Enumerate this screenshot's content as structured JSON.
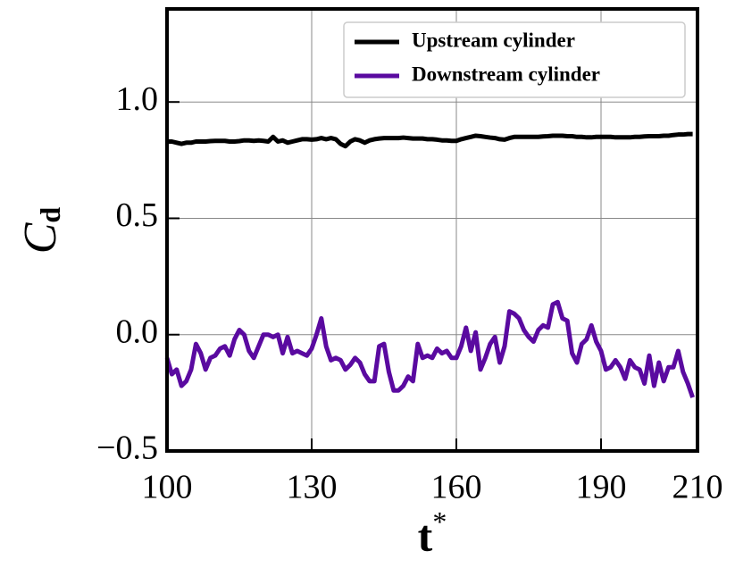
{
  "chart_data": {
    "type": "line",
    "x_label": {
      "main": "t",
      "sup": "*"
    },
    "y_label": {
      "main": "C",
      "sub": "d"
    },
    "x": [
      100,
      101,
      102,
      103,
      104,
      105,
      106,
      107,
      108,
      109,
      110,
      111,
      112,
      113,
      114,
      115,
      116,
      117,
      118,
      119,
      120,
      121,
      122,
      123,
      124,
      125,
      126,
      127,
      128,
      129,
      130,
      131,
      132,
      133,
      134,
      135,
      136,
      137,
      138,
      139,
      140,
      141,
      142,
      143,
      144,
      145,
      146,
      147,
      148,
      149,
      150,
      151,
      152,
      153,
      154,
      155,
      156,
      157,
      158,
      159,
      160,
      161,
      162,
      163,
      164,
      165,
      166,
      167,
      168,
      169,
      170,
      171,
      172,
      173,
      174,
      175,
      176,
      177,
      178,
      179,
      180,
      181,
      182,
      183,
      184,
      185,
      186,
      187,
      188,
      189,
      190,
      191,
      192,
      193,
      194,
      195,
      196,
      197,
      198,
      199,
      200,
      201,
      202,
      203,
      204,
      205,
      206,
      207,
      208,
      209
    ],
    "series": [
      {
        "name": "Upstream cylinder",
        "color": "#000000",
        "values": [
          0.83,
          0.83,
          0.825,
          0.82,
          0.825,
          0.825,
          0.83,
          0.83,
          0.83,
          0.832,
          0.833,
          0.833,
          0.833,
          0.83,
          0.83,
          0.832,
          0.835,
          0.835,
          0.833,
          0.835,
          0.833,
          0.83,
          0.85,
          0.83,
          0.835,
          0.825,
          0.83,
          0.835,
          0.84,
          0.84,
          0.838,
          0.84,
          0.845,
          0.84,
          0.845,
          0.84,
          0.82,
          0.81,
          0.83,
          0.84,
          0.835,
          0.825,
          0.835,
          0.84,
          0.843,
          0.845,
          0.845,
          0.845,
          0.845,
          0.847,
          0.845,
          0.843,
          0.843,
          0.843,
          0.84,
          0.84,
          0.838,
          0.835,
          0.835,
          0.833,
          0.833,
          0.84,
          0.845,
          0.85,
          0.855,
          0.853,
          0.85,
          0.847,
          0.845,
          0.84,
          0.838,
          0.845,
          0.85,
          0.85,
          0.85,
          0.85,
          0.85,
          0.85,
          0.852,
          0.853,
          0.855,
          0.855,
          0.855,
          0.853,
          0.853,
          0.85,
          0.85,
          0.848,
          0.848,
          0.85,
          0.85,
          0.85,
          0.85,
          0.848,
          0.848,
          0.848,
          0.848,
          0.85,
          0.85,
          0.852,
          0.853,
          0.853,
          0.853,
          0.855,
          0.855,
          0.858,
          0.86,
          0.86,
          0.862,
          0.862
        ]
      },
      {
        "name": "Downstream cylinder",
        "color": "#5a0aa0",
        "values": [
          -0.1,
          -0.17,
          -0.15,
          -0.22,
          -0.2,
          -0.15,
          -0.04,
          -0.08,
          -0.15,
          -0.1,
          -0.09,
          -0.06,
          -0.05,
          -0.09,
          -0.02,
          0.02,
          0.0,
          -0.07,
          -0.1,
          -0.05,
          0.0,
          0.0,
          -0.01,
          0.0,
          -0.08,
          -0.01,
          -0.08,
          -0.07,
          -0.08,
          -0.09,
          -0.06,
          0.0,
          0.07,
          -0.05,
          -0.11,
          -0.1,
          -0.11,
          -0.15,
          -0.13,
          -0.1,
          -0.12,
          -0.17,
          -0.2,
          -0.2,
          -0.05,
          -0.04,
          -0.16,
          -0.24,
          -0.24,
          -0.22,
          -0.18,
          -0.2,
          -0.04,
          -0.1,
          -0.09,
          -0.1,
          -0.06,
          -0.08,
          -0.07,
          -0.1,
          -0.1,
          -0.05,
          0.03,
          -0.07,
          0.01,
          -0.15,
          -0.1,
          -0.04,
          -0.01,
          -0.12,
          -0.05,
          0.1,
          0.09,
          0.07,
          0.02,
          -0.01,
          -0.03,
          0.02,
          0.04,
          0.03,
          0.13,
          0.14,
          0.07,
          0.06,
          -0.08,
          -0.12,
          -0.04,
          -0.02,
          0.04,
          -0.03,
          -0.07,
          -0.15,
          -0.14,
          -0.11,
          -0.14,
          -0.19,
          -0.11,
          -0.14,
          -0.15,
          -0.21,
          -0.09,
          -0.22,
          -0.12,
          -0.2,
          -0.14,
          -0.14,
          -0.07,
          -0.16,
          -0.21,
          -0.27
        ]
      }
    ],
    "xlim": [
      100,
      210
    ],
    "ylim": [
      -0.5,
      1.4
    ],
    "xticks": [
      100,
      130,
      160,
      190,
      210
    ],
    "yticks": [
      {
        "value": -0.5,
        "label": "−0.5"
      },
      {
        "value": 0,
        "label": "0.0"
      },
      0.5,
      {
        "value": 1,
        "label": "1.0"
      }
    ],
    "grid": true,
    "legend": "upper right"
  }
}
